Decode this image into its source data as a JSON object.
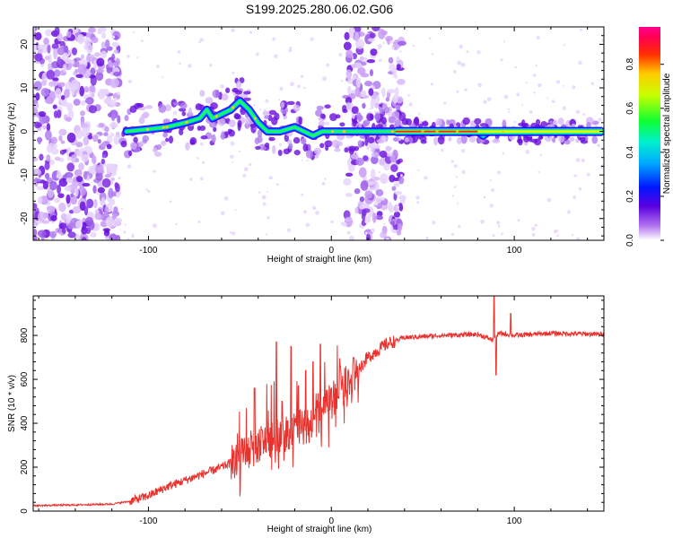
{
  "title": "S199.2025.280.06.02.G06",
  "colors": {
    "snr_line": "#e8322e",
    "background": "#ffffff",
    "axis": "#000000"
  },
  "chart_data": [
    {
      "type": "heatmap",
      "name": "spectrogram",
      "xlabel": "Height of straight line (km)",
      "ylabel": "Frequency (Hz)",
      "xlim": [
        -163,
        149
      ],
      "ylim": [
        -25,
        24
      ],
      "xticks": [
        -100,
        0,
        100
      ],
      "xtick_labels": [
        "-100",
        "0",
        "100"
      ],
      "yticks": [
        -20,
        -10,
        0,
        10,
        20
      ],
      "ytick_labels": [
        "-20",
        "-10",
        "0",
        "10",
        "20"
      ],
      "colorbar": {
        "label": "Normalized spectral amplitude",
        "range": [
          0.0,
          0.97
        ],
        "ticks": [
          0.0,
          0.2,
          0.4,
          0.6,
          0.8
        ],
        "tick_labels": [
          "0.0",
          "0.2",
          "0.4",
          "0.6",
          "0.8"
        ],
        "colormap": "rainbow"
      },
      "features": {
        "noise_bands_x": [
          [
            -163,
            -120
          ],
          [
            10,
            35
          ]
        ],
        "signal_ridge": [
          [
            -112,
            0
          ],
          [
            -100,
            0.5
          ],
          [
            -90,
            1
          ],
          [
            -80,
            2
          ],
          [
            -72,
            3
          ],
          [
            -68,
            5
          ],
          [
            -65,
            3
          ],
          [
            -60,
            4
          ],
          [
            -55,
            5
          ],
          [
            -50,
            7
          ],
          [
            -45,
            5
          ],
          [
            -40,
            2
          ],
          [
            -35,
            0
          ],
          [
            -28,
            0
          ],
          [
            -20,
            1
          ],
          [
            -15,
            0
          ],
          [
            -10,
            -1
          ],
          [
            -5,
            0
          ],
          [
            0,
            0
          ],
          [
            5,
            0
          ],
          [
            10,
            0
          ],
          [
            20,
            0
          ],
          [
            35,
            0
          ],
          [
            80,
            0
          ],
          [
            83,
            -1
          ],
          [
            86,
            0
          ],
          [
            120,
            0
          ],
          [
            148,
            0
          ]
        ],
        "strong_line_x": [
          35,
          148
        ]
      }
    },
    {
      "type": "line",
      "name": "snr",
      "xlabel": "Height of straight line (km)",
      "ylabel": "SNR (10 * v/v)",
      "xlim": [
        -163,
        149
      ],
      "ylim": [
        0,
        980
      ],
      "xticks": [
        -100,
        0,
        100
      ],
      "xtick_labels": [
        "-100",
        "0",
        "100"
      ],
      "yticks": [
        0,
        200,
        400,
        600,
        800
      ],
      "ytick_labels": [
        "0",
        "200",
        "400",
        "600",
        "800"
      ],
      "envelope": {
        "x": [
          -163,
          -140,
          -120,
          -110,
          -100,
          -90,
          -80,
          -70,
          -60,
          -50,
          -40,
          -30,
          -20,
          -10,
          0,
          10,
          20,
          30,
          40,
          60,
          80,
          88,
          92,
          100,
          120,
          149
        ],
        "y": [
          25,
          28,
          32,
          45,
          70,
          110,
          140,
          170,
          200,
          240,
          300,
          340,
          370,
          400,
          500,
          600,
          700,
          760,
          790,
          800,
          805,
          780,
          810,
          800,
          810,
          805
        ]
      },
      "spikes": [
        {
          "x": -49,
          "y": 330
        },
        {
          "x": -42,
          "y": 560
        },
        {
          "x": -38,
          "y": 370
        },
        {
          "x": -30,
          "y": 770
        },
        {
          "x": -27,
          "y": 500
        },
        {
          "x": -22,
          "y": 750
        },
        {
          "x": -18,
          "y": 570
        },
        {
          "x": -14,
          "y": 640
        },
        {
          "x": -10,
          "y": 680
        },
        {
          "x": -6,
          "y": 760
        },
        {
          "x": 0,
          "y": 560
        },
        {
          "x": 5,
          "y": 660
        },
        {
          "x": 12,
          "y": 700
        },
        {
          "x": 18,
          "y": 680
        },
        {
          "x": 89,
          "y": 980
        },
        {
          "x": 90,
          "y": 620
        },
        {
          "x": 98,
          "y": 900
        }
      ]
    }
  ]
}
